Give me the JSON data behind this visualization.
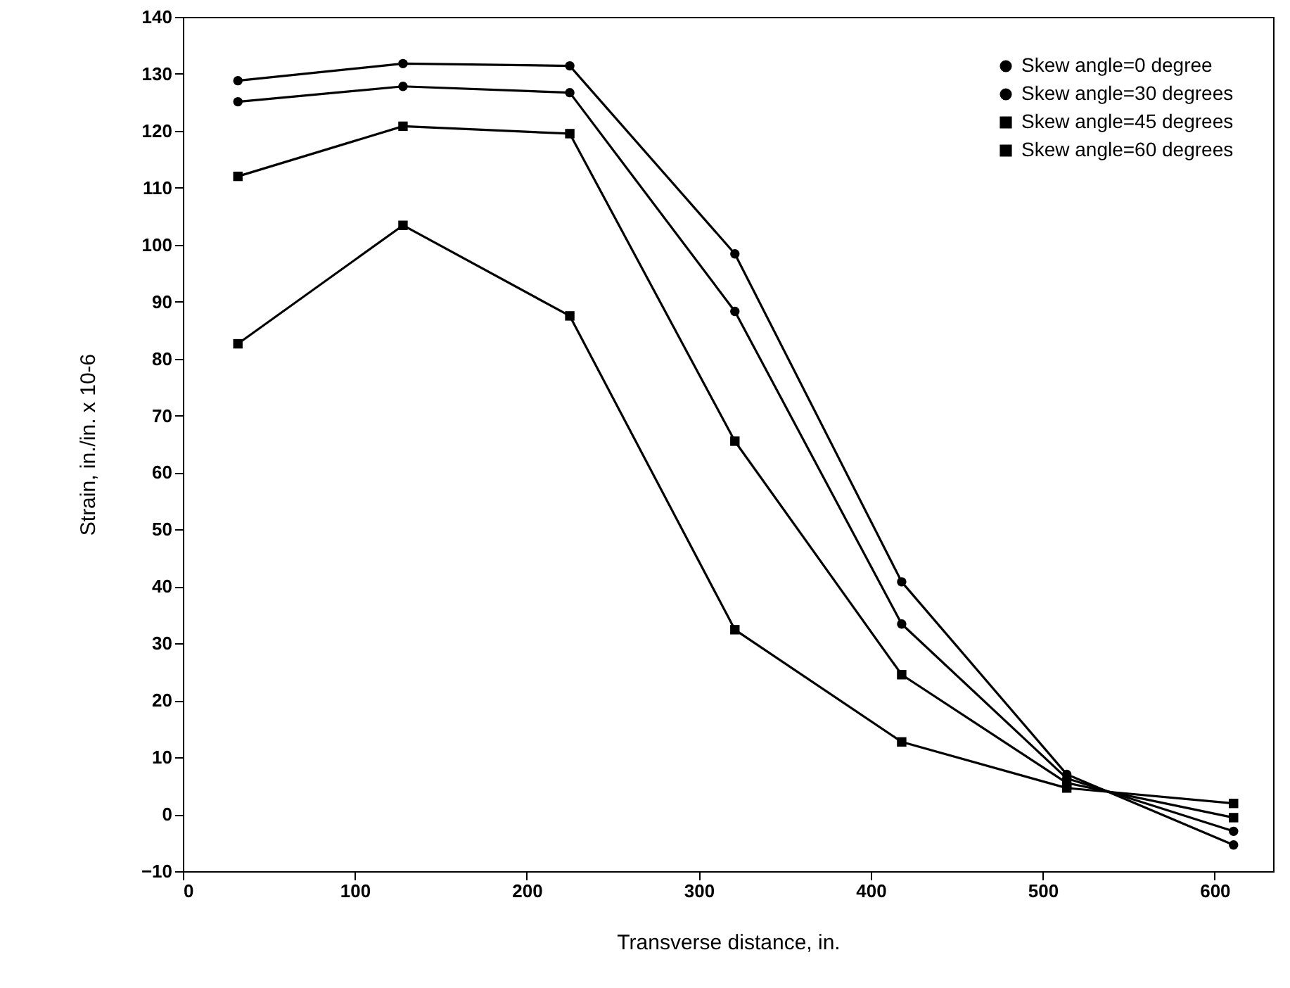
{
  "chart_data": {
    "type": "line",
    "xlabel": "Transverse  distance, in.",
    "ylabel": "Strain, in./in. x 10-6",
    "x": [
      32,
      128,
      225,
      321,
      418,
      514,
      611
    ],
    "xlim": [
      0,
      634
    ],
    "xticks": [
      0,
      100,
      200,
      300,
      400,
      500,
      600
    ],
    "ylim": [
      -10,
      140
    ],
    "yticks": [
      -10,
      0,
      10,
      20,
      30,
      40,
      50,
      60,
      70,
      80,
      90,
      100,
      110,
      120,
      130,
      140
    ],
    "legend": "top right",
    "grid": false,
    "line_style": "solid",
    "series": [
      {
        "name": "Skew angle=0 degree",
        "color": "#000000",
        "marker": "circle",
        "values": [
          128.8,
          131.8,
          131.4,
          98.4,
          40.8,
          7.0,
          -5.4
        ]
      },
      {
        "name": "Skew angle=30 degrees",
        "color": "#000000",
        "marker": "circle",
        "values": [
          125.1,
          127.8,
          126.7,
          88.3,
          33.4,
          6.3,
          -3.0
        ]
      },
      {
        "name": "Skew angle=45 degrees",
        "color": "#000000",
        "marker": "square",
        "values": [
          112.0,
          120.8,
          119.5,
          65.5,
          24.5,
          5.5,
          -0.6
        ]
      },
      {
        "name": "Skew angle=60 degrees",
        "color": "#000000",
        "marker": "square",
        "values": [
          82.6,
          103.4,
          87.5,
          32.4,
          12.7,
          4.6,
          1.9
        ]
      }
    ]
  }
}
